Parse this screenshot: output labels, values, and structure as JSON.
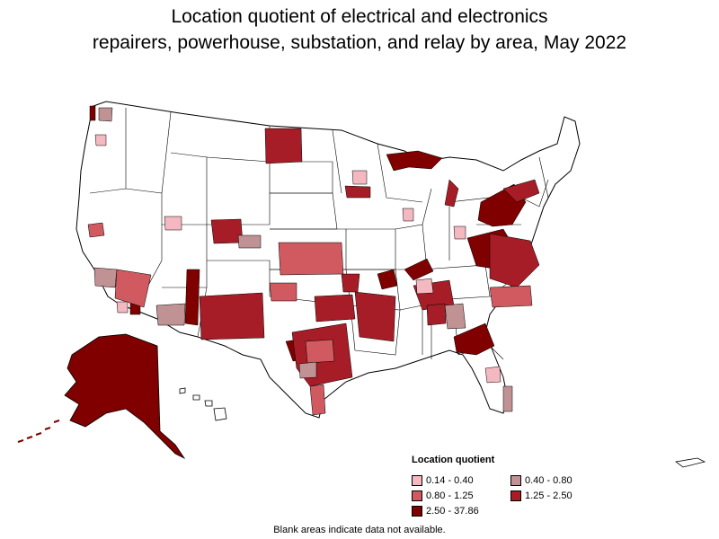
{
  "title_line1": "Location quotient of electrical and electronics",
  "title_line2": "repairers, powerhouse, substation, and relay by area, May 2022",
  "legend": {
    "title": "Location quotient",
    "items": [
      {
        "label": "0.14 - 0.40",
        "color": "#f4b8c0"
      },
      {
        "label": "0.40 - 0.80",
        "color": "#c09294"
      },
      {
        "label": "0.80 - 1.25",
        "color": "#d05a60"
      },
      {
        "label": "1.25 - 2.50",
        "color": "#a61d27"
      },
      {
        "label": "2.50 - 37.86",
        "color": "#800000"
      }
    ]
  },
  "footnote": "Blank areas indicate data not available.",
  "colors": {
    "no_data": "#ffffff",
    "border": "#000000"
  }
}
